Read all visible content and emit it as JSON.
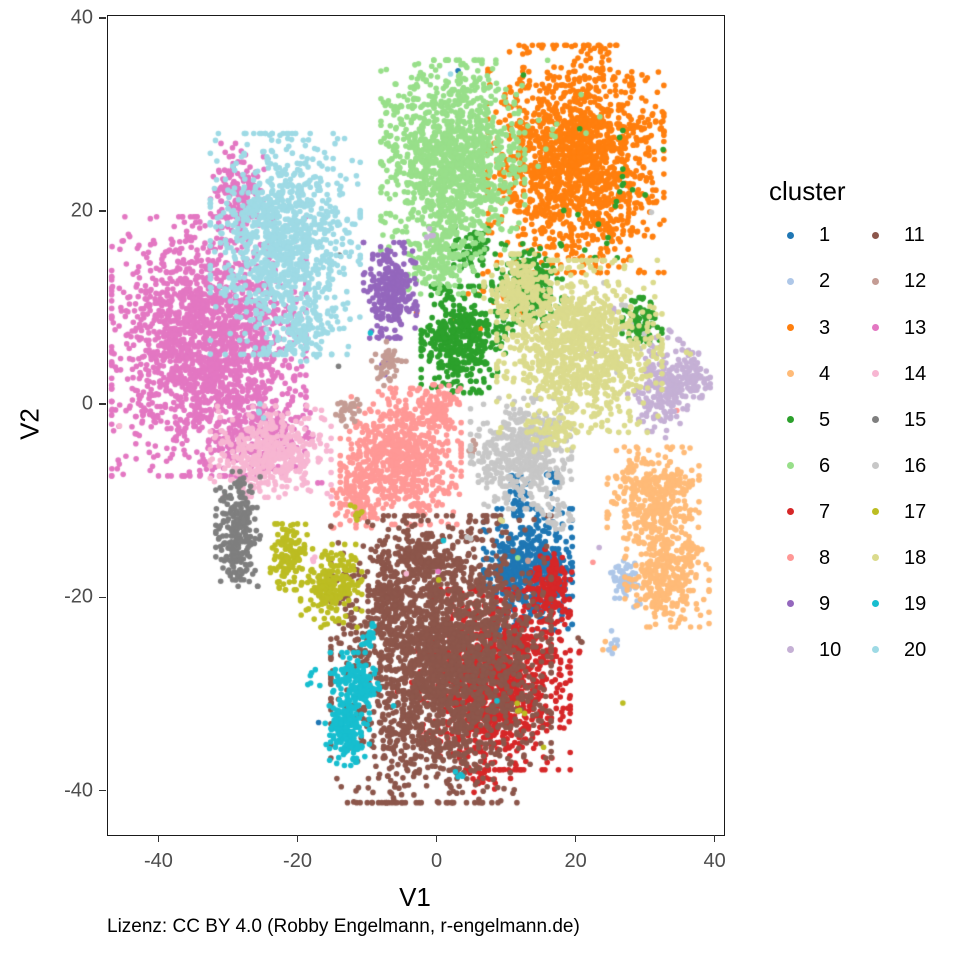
{
  "figure": {
    "background": "#ffffff"
  },
  "caption": "Lizenz: CC BY 4.0 (Robby Engelmann, r-engelmann.de)",
  "legend": {
    "title": "cluster"
  },
  "chart_data": {
    "type": "scatter",
    "title": "",
    "xlabel": "V1",
    "ylabel": "V2",
    "xlim": [
      -47.4,
      41.2
    ],
    "ylim": [
      -44.5,
      40.3
    ],
    "x_ticks": [
      -40,
      -20,
      0,
      20,
      40
    ],
    "y_ticks": [
      40,
      20,
      0,
      -20,
      -40
    ],
    "grid": false,
    "legend_position": "right",
    "point_radius_px": 2.8,
    "seed": 11,
    "tick_color": "#4d4d4d",
    "clusters": [
      {
        "id": "1",
        "color": "#1f77b4",
        "blobs": [
          [
            13.0,
            -17.0,
            5.8,
            5.7,
            520
          ],
          [
            11.6,
            -8.9,
            1.7,
            2.3,
            40
          ],
          [
            16.6,
            -7.5,
            1.2,
            1.5,
            10
          ],
          [
            3.2,
            34.6,
            0.4,
            0.4,
            1
          ],
          [
            -17.1,
            -32.8,
            0.3,
            0.3,
            1
          ]
        ]
      },
      {
        "id": "2",
        "color": "#aec7e8",
        "blobs": [
          [
            26.8,
            -17.9,
            2.0,
            1.9,
            55
          ],
          [
            25.3,
            -24.9,
            1.2,
            1.4,
            8
          ],
          [
            28.6,
            -20.6,
            0.6,
            0.6,
            3
          ]
        ]
      },
      {
        "id": "3",
        "color": "#ff7f0e",
        "blobs": [
          [
            19.9,
            25.5,
            11.5,
            10.7,
            1600
          ],
          [
            12.9,
            36.6,
            1.0,
            0.8,
            4
          ],
          [
            9.1,
            11.0,
            6.5,
            4.1,
            22
          ],
          [
            0.1,
            -0.5,
            0.5,
            0.5,
            2
          ],
          [
            18.6,
            -2.2,
            0.3,
            0.3,
            1
          ],
          [
            -2.8,
            9.7,
            0.3,
            0.3,
            1
          ]
        ]
      },
      {
        "id": "4",
        "color": "#ffbb78",
        "blobs": [
          [
            31.0,
            -9.6,
            6.0,
            4.8,
            380
          ],
          [
            33.0,
            -17.8,
            5.5,
            4.7,
            320
          ],
          [
            24.5,
            -24.7,
            1.0,
            1.0,
            3
          ],
          [
            35.0,
            -6.8,
            0.5,
            0.5,
            2
          ]
        ]
      },
      {
        "id": "5",
        "color": "#2ca02c",
        "blobs": [
          [
            3.7,
            6.8,
            5.5,
            5.0,
            430
          ],
          [
            13.2,
            12.2,
            4.9,
            4.1,
            220
          ],
          [
            29.4,
            8.5,
            2.6,
            2.4,
            90
          ],
          [
            25.3,
            21.6,
            6.5,
            6.7,
            22
          ],
          [
            5.1,
            16.3,
            2.9,
            2.6,
            60
          ],
          [
            12.4,
            34.2,
            0.3,
            0.3,
            1
          ]
        ]
      },
      {
        "id": "6",
        "color": "#98df8a",
        "blobs": [
          [
            2.2,
            25.5,
            9.4,
            9.3,
            1250
          ],
          [
            0.5,
            14.6,
            4.3,
            2.8,
            130
          ],
          [
            17.8,
            28.9,
            7.2,
            6.2,
            14
          ],
          [
            11.6,
            -16.1,
            0.3,
            0.3,
            1
          ]
        ]
      },
      {
        "id": "7",
        "color": "#d62728",
        "blobs": [
          [
            8.3,
            -28.4,
            9.8,
            8.5,
            1150
          ],
          [
            16.2,
            -19.2,
            2.9,
            3.9,
            150
          ],
          [
            -0.6,
            -30.6,
            8.6,
            6.2,
            22
          ],
          [
            7.6,
            -38.6,
            4.3,
            1.4,
            25
          ],
          [
            20.2,
            -25.6,
            0.5,
            0.5,
            2
          ]
        ]
      },
      {
        "id": "8",
        "color": "#ff9896",
        "blobs": [
          [
            -5.3,
            -5.3,
            7.9,
            6.4,
            690
          ],
          [
            -11.6,
            -9.5,
            3.2,
            2.9,
            110
          ],
          [
            0.2,
            -0.3,
            2.6,
            2.2,
            80
          ],
          [
            34.5,
            -0.4,
            0.3,
            0.3,
            1
          ],
          [
            22.4,
            -16.3,
            0.3,
            0.3,
            1
          ]
        ]
      },
      {
        "id": "9",
        "color": "#9467bd",
        "blobs": [
          [
            -6.8,
            11.9,
            3.5,
            4.5,
            270
          ],
          [
            -7.6,
            4.8,
            1.0,
            1.5,
            4
          ]
        ]
      },
      {
        "id": "10",
        "color": "#c5b0d5",
        "blobs": [
          [
            32.7,
            1.9,
            3.6,
            4.7,
            230,
            -35
          ],
          [
            36.8,
            3.1,
            2.2,
            2.1,
            60
          ],
          [
            -1.4,
            18.0,
            1.2,
            1.5,
            4
          ],
          [
            22.5,
            5.4,
            1.0,
            1.0,
            2
          ],
          [
            23.2,
            -14.8,
            0.3,
            0.3,
            1
          ],
          [
            32.6,
            -3.7,
            0.3,
            0.3,
            1
          ],
          [
            25.3,
            9.9,
            0.5,
            0.5,
            2
          ]
        ]
      },
      {
        "id": "11",
        "color": "#8c564b",
        "blobs": [
          [
            0.5,
            -26.3,
            14.4,
            13.5,
            2450
          ],
          [
            -2.4,
            -15.7,
            5.0,
            2.2,
            130
          ],
          [
            -7.6,
            -20.3,
            2.2,
            3.1,
            70
          ],
          [
            20.4,
            -24.5,
            0.5,
            0.5,
            3
          ]
        ]
      },
      {
        "id": "12",
        "color": "#c49c94",
        "blobs": [
          [
            -7.0,
            4.3,
            2.0,
            1.8,
            42,
            40
          ],
          [
            -12.9,
            -0.5,
            1.7,
            1.4,
            32,
            40
          ],
          [
            4.8,
            -4.5,
            1.0,
            0.9,
            7
          ],
          [
            13.0,
            -16.1,
            0.4,
            0.4,
            2
          ]
        ]
      },
      {
        "id": "13",
        "color": "#e377c2",
        "blobs": [
          [
            -32.9,
            6.1,
            12.7,
            12.2,
            1900
          ],
          [
            -28.8,
            22.6,
            3.5,
            4.1,
            130
          ],
          [
            -25.1,
            -3.8,
            6.5,
            2.9,
            140
          ],
          [
            -45.5,
            17.2,
            0.3,
            0.3,
            1
          ],
          [
            -40.5,
            16.7,
            0.3,
            0.3,
            1
          ],
          [
            -16.8,
            -8.0,
            0.5,
            0.5,
            2
          ],
          [
            0.1,
            -17.4,
            0.3,
            0.3,
            1
          ]
        ]
      },
      {
        "id": "14",
        "color": "#f7b6d2",
        "blobs": [
          [
            -24.0,
            -4.8,
            7.9,
            4.3,
            410
          ],
          [
            -18.2,
            -15.9,
            0.8,
            0.8,
            3
          ],
          [
            -45.8,
            -2.0,
            0.3,
            0.3,
            1
          ],
          [
            -4.5,
            -17.3,
            0.3,
            0.3,
            1
          ]
        ]
      },
      {
        "id": "15",
        "color": "#7f7f7f",
        "blobs": [
          [
            -28.7,
            -12.8,
            2.9,
            5.4,
            260
          ],
          [
            -14.2,
            15.7,
            0.3,
            0.3,
            1
          ],
          [
            -14.3,
            3.7,
            0.3,
            0.3,
            1
          ]
        ]
      },
      {
        "id": "16",
        "color": "#c7c7c7",
        "blobs": [
          [
            12.0,
            -5.0,
            6.6,
            5.2,
            470
          ],
          [
            17.2,
            -11.6,
            2.0,
            1.7,
            25
          ],
          [
            25.0,
            7.5,
            5.8,
            4.7,
            16
          ],
          [
            30.7,
            19.9,
            0.3,
            0.3,
            1
          ],
          [
            4.5,
            -13.4,
            0.5,
            0.5,
            2
          ],
          [
            17.8,
            -7.9,
            0.5,
            0.5,
            2
          ]
        ]
      },
      {
        "id": "17",
        "color": "#bcbd22",
        "blobs": [
          [
            -21.4,
            -15.7,
            2.4,
            3.1,
            130
          ],
          [
            -15.3,
            -18.7,
            4.0,
            3.9,
            220
          ],
          [
            -11.3,
            -11.2,
            1.2,
            1.2,
            10
          ],
          [
            12.0,
            -31.4,
            1.5,
            0.8,
            4
          ],
          [
            0.2,
            -18.3,
            0.3,
            0.3,
            1
          ],
          [
            26.5,
            -30.7,
            0.3,
            0.3,
            1
          ],
          [
            15.3,
            -35.2,
            0.3,
            0.3,
            1
          ]
        ]
      },
      {
        "id": "18",
        "color": "#dbdb8d",
        "blobs": [
          [
            20.4,
            6.1,
            10.8,
            8.1,
            1050
          ],
          [
            11.4,
            11.7,
            4.3,
            3.6,
            170
          ],
          [
            16.2,
            -2.7,
            3.6,
            1.9,
            55
          ],
          [
            9.1,
            -12.1,
            0.5,
            0.5,
            2
          ],
          [
            36.2,
            5.4,
            0.5,
            0.5,
            2
          ]
        ]
      },
      {
        "id": "19",
        "color": "#17becf",
        "blobs": [
          [
            -11.9,
            -28.8,
            3.2,
            2.9,
            150
          ],
          [
            -13.0,
            -33.9,
            2.9,
            3.1,
            160
          ],
          [
            -9.9,
            -23.8,
            1.2,
            1.4,
            22
          ],
          [
            -17.9,
            -28.7,
            0.9,
            1.2,
            6
          ],
          [
            0.9,
            -14.1,
            0.3,
            0.3,
            1
          ],
          [
            3.8,
            -38.2,
            1.4,
            0.8,
            4
          ],
          [
            -6.5,
            -31.0,
            0.3,
            0.3,
            1
          ],
          [
            8.7,
            -30.6,
            0.3,
            0.3,
            1
          ],
          [
            -9.6,
            7.5,
            0.3,
            0.3,
            1
          ]
        ]
      },
      {
        "id": "20",
        "color": "#9edae5",
        "blobs": [
          [
            -21.9,
            16.7,
            9.8,
            10.4,
            1050
          ],
          [
            -19.5,
            7.5,
            4.3,
            2.7,
            90
          ],
          [
            -25.0,
            -0.9,
            1.0,
            1.4,
            4
          ],
          [
            1.8,
            34.2,
            0.3,
            0.3,
            1
          ]
        ]
      }
    ]
  }
}
